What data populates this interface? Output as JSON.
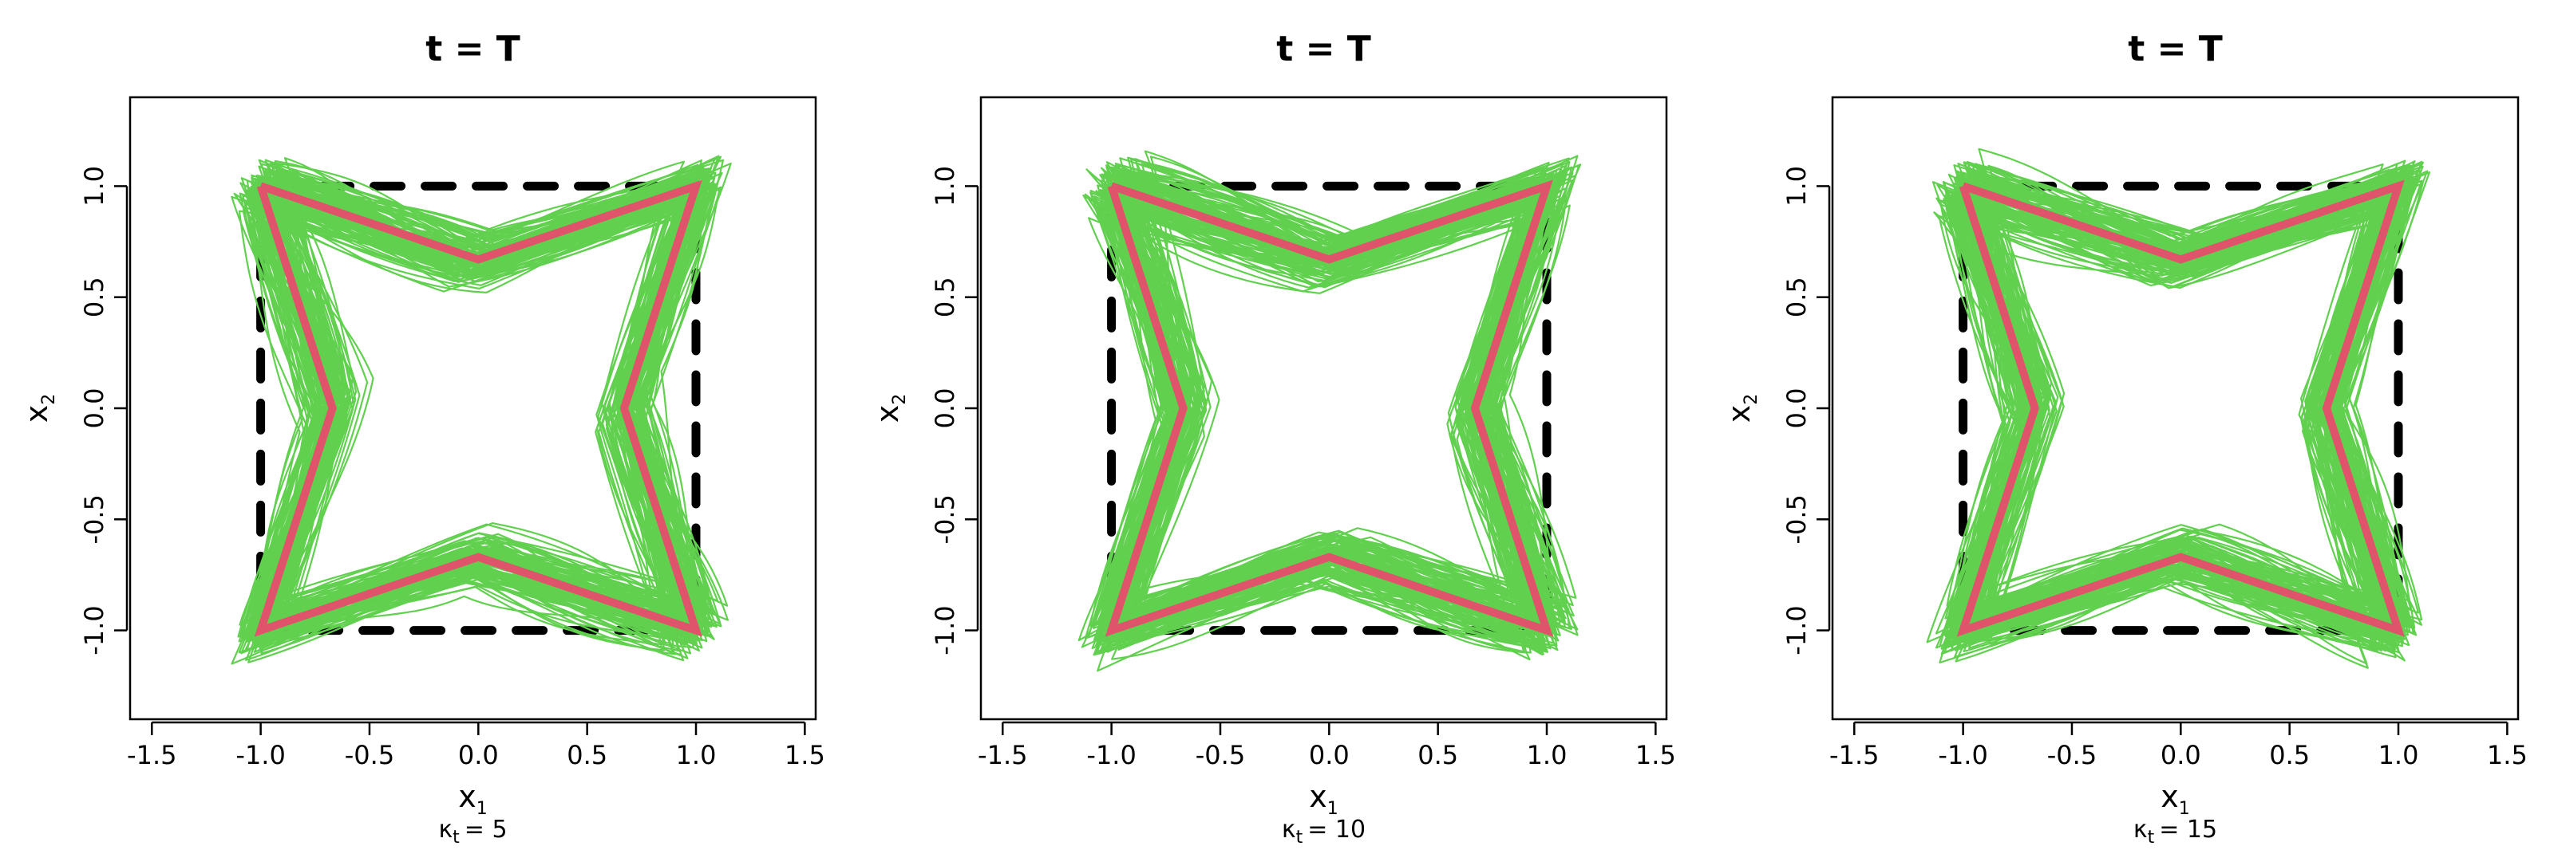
{
  "colors": {
    "trajectories": "#61d04f",
    "target_star": "#df536b",
    "initial_square": "#000000",
    "frame": "#000000"
  },
  "chart_data": [
    {
      "type": "line",
      "title": "t = T",
      "xlabel": "x",
      "xlabel_sub": "1",
      "ylabel": "x",
      "ylabel_sub": "2",
      "kappa_label": "κ",
      "kappa_sub": "t",
      "kappa_value": "= 5",
      "xlim": [
        -1.6,
        1.55
      ],
      "ylim": [
        -1.4,
        1.4
      ],
      "xticks": [
        -1.5,
        -1.0,
        -0.5,
        0.0,
        0.5,
        1.0,
        1.5
      ],
      "xtick_labels": [
        "-1.5",
        "-1.0",
        "-0.5",
        "0.0",
        "0.5",
        "1.0",
        "1.5"
      ],
      "yticks": [
        -1.0,
        -0.5,
        0.0,
        0.5,
        1.0
      ],
      "ytick_labels": [
        "-1.0",
        "-0.5",
        "0.0",
        "0.5",
        "1.0"
      ],
      "grid": false,
      "square": {
        "style": "dashed",
        "x": [
          -1,
          1,
          1,
          -1,
          -1
        ],
        "y": [
          -1,
          -1,
          1,
          1,
          -1
        ]
      },
      "star": {
        "x": [
          -1,
          0,
          1,
          0.67,
          1,
          0,
          -1,
          -0.67,
          -1
        ],
        "y": [
          1,
          0.67,
          1,
          0,
          -1,
          -0.67,
          -1,
          0,
          1
        ]
      },
      "trajectory_band": {
        "n_curves": 120,
        "spread": 0.09
      }
    },
    {
      "type": "line",
      "title": "t = T",
      "xlabel": "x",
      "xlabel_sub": "1",
      "ylabel": "x",
      "ylabel_sub": "2",
      "kappa_label": "κ",
      "kappa_sub": "t",
      "kappa_value": "= 10",
      "xlim": [
        -1.6,
        1.55
      ],
      "ylim": [
        -1.4,
        1.4
      ],
      "xticks": [
        -1.5,
        -1.0,
        -0.5,
        0.0,
        0.5,
        1.0,
        1.5
      ],
      "xtick_labels": [
        "-1.5",
        "-1.0",
        "-0.5",
        "0.0",
        "0.5",
        "1.0",
        "1.5"
      ],
      "yticks": [
        -1.0,
        -0.5,
        0.0,
        0.5,
        1.0
      ],
      "ytick_labels": [
        "-1.0",
        "-0.5",
        "0.0",
        "0.5",
        "1.0"
      ],
      "grid": false,
      "square": {
        "style": "dashed",
        "x": [
          -1,
          1,
          1,
          -1,
          -1
        ],
        "y": [
          -1,
          -1,
          1,
          1,
          -1
        ]
      },
      "star": {
        "x": [
          -1,
          0,
          1,
          0.67,
          1,
          0,
          -1,
          -0.67,
          -1
        ],
        "y": [
          1,
          0.67,
          1,
          0,
          -1,
          -0.67,
          -1,
          0,
          1
        ]
      },
      "trajectory_band": {
        "n_curves": 120,
        "spread": 0.09
      }
    },
    {
      "type": "line",
      "title": "t = T",
      "xlabel": "x",
      "xlabel_sub": "1",
      "ylabel": "x",
      "ylabel_sub": "2",
      "kappa_label": "κ",
      "kappa_sub": "t",
      "kappa_value": "= 15",
      "xlim": [
        -1.6,
        1.55
      ],
      "ylim": [
        -1.4,
        1.4
      ],
      "xticks": [
        -1.5,
        -1.0,
        -0.5,
        0.0,
        0.5,
        1.0,
        1.5
      ],
      "xtick_labels": [
        "-1.5",
        "-1.0",
        "-0.5",
        "0.0",
        "0.5",
        "1.0",
        "1.5"
      ],
      "yticks": [
        -1.0,
        -0.5,
        0.0,
        0.5,
        1.0
      ],
      "ytick_labels": [
        "-1.0",
        "-0.5",
        "0.0",
        "0.5",
        "1.0"
      ],
      "grid": false,
      "square": {
        "style": "dashed",
        "x": [
          -1,
          1,
          1,
          -1,
          -1
        ],
        "y": [
          -1,
          -1,
          1,
          1,
          -1
        ]
      },
      "star": {
        "x": [
          -1,
          0,
          1,
          0.67,
          1,
          0,
          -1,
          -0.67,
          -1
        ],
        "y": [
          1,
          0.67,
          1,
          0,
          -1,
          -0.67,
          -1,
          0,
          1
        ]
      },
      "trajectory_band": {
        "n_curves": 120,
        "spread": 0.09
      }
    }
  ]
}
